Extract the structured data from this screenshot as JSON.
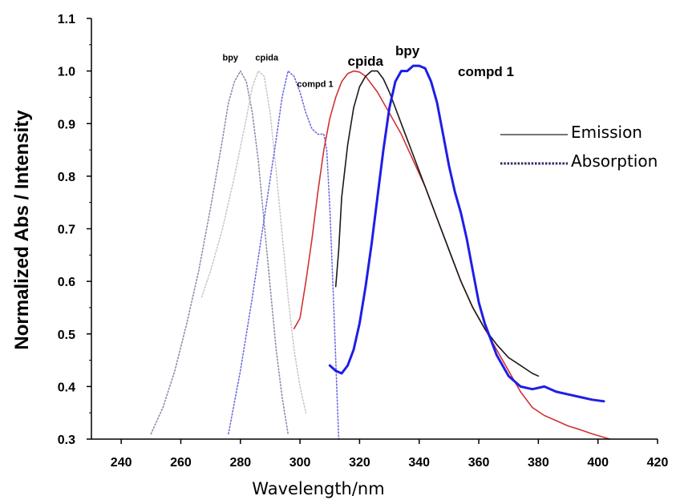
{
  "chart_data": {
    "type": "line",
    "xlabel": "Wavelength/nm",
    "ylabel": "Normalized Abs / Intensity",
    "xlim": [
      230,
      420
    ],
    "ylim": [
      0.3,
      1.1
    ],
    "xticks": [
      240,
      260,
      280,
      300,
      320,
      340,
      360,
      380,
      400,
      420
    ],
    "yticks": [
      0.3,
      0.4,
      0.5,
      0.6,
      0.7,
      0.8,
      0.9,
      1.0,
      1.1
    ],
    "xtick_labels": [
      "240",
      "260",
      "280",
      "300",
      "320",
      "340",
      "360",
      "380",
      "400",
      "420"
    ],
    "ytick_labels": [
      "0.3",
      "0.4",
      "0.5",
      "0.6",
      "0.7",
      "0.8",
      "0.9",
      "1.0",
      "1.1"
    ],
    "grid": false,
    "legend": {
      "placement": "right",
      "entries": [
        {
          "label": "Emission",
          "style": "solid"
        },
        {
          "label": "Absorption",
          "style": "dotted"
        }
      ]
    },
    "annotations": [
      {
        "text": "bpy",
        "x": 274,
        "y": 1.02,
        "size": "small"
      },
      {
        "text": "cpida",
        "x": 285,
        "y": 1.02,
        "size": "small"
      },
      {
        "text": "compd 1",
        "x": 299,
        "y": 0.97,
        "size": "small"
      },
      {
        "text": "cpida",
        "x": 316,
        "y": 1.01,
        "size": "large"
      },
      {
        "text": "bpy",
        "x": 332,
        "y": 1.03,
        "size": "large"
      },
      {
        "text": "compd 1",
        "x": 353,
        "y": 0.99,
        "size": "large"
      }
    ],
    "series": [
      {
        "style": "dotted",
        "color": "#8c8ca8",
        "x": [
          250,
          254,
          258,
          262,
          266,
          270,
          274,
          276,
          278,
          280,
          282,
          284,
          286,
          288,
          290,
          292,
          294,
          296
        ],
        "y": [
          0.31,
          0.36,
          0.43,
          0.52,
          0.62,
          0.74,
          0.87,
          0.94,
          0.98,
          1.0,
          0.98,
          0.92,
          0.83,
          0.71,
          0.59,
          0.47,
          0.38,
          0.31
        ]
      },
      {
        "style": "dotted",
        "color": "#c8c8c8",
        "x": [
          267,
          270,
          274,
          278,
          282,
          284,
          286,
          288,
          290,
          292,
          294,
          296,
          298,
          300,
          302
        ],
        "y": [
          0.57,
          0.62,
          0.7,
          0.8,
          0.91,
          0.97,
          1.0,
          0.99,
          0.92,
          0.81,
          0.69,
          0.57,
          0.47,
          0.4,
          0.35
        ]
      },
      {
        "style": "dotted",
        "color": "#6a6ae0",
        "x": [
          276,
          280,
          284,
          288,
          292,
          294,
          296,
          298,
          300,
          302,
          304,
          306,
          308,
          309,
          310,
          311,
          312,
          313
        ],
        "y": [
          0.31,
          0.43,
          0.57,
          0.72,
          0.87,
          0.95,
          1.0,
          0.99,
          0.96,
          0.92,
          0.89,
          0.88,
          0.88,
          0.85,
          0.74,
          0.6,
          0.45,
          0.3
        ]
      },
      {
        "style": "solid",
        "color": "#d23232",
        "x": [
          298,
          300,
          302,
          304,
          306,
          308,
          310,
          312,
          314,
          316,
          318,
          320,
          322,
          324,
          326,
          328,
          330,
          334,
          338,
          342,
          346,
          350,
          354,
          358,
          362,
          366,
          370,
          374,
          378,
          382,
          386,
          390,
          394,
          398,
          404
        ],
        "y": [
          0.51,
          0.53,
          0.6,
          0.68,
          0.77,
          0.85,
          0.91,
          0.95,
          0.98,
          0.995,
          1.0,
          0.998,
          0.99,
          0.975,
          0.96,
          0.94,
          0.92,
          0.88,
          0.83,
          0.78,
          0.72,
          0.66,
          0.6,
          0.55,
          0.51,
          0.47,
          0.43,
          0.39,
          0.36,
          0.345,
          0.335,
          0.325,
          0.318,
          0.31,
          0.3
        ]
      },
      {
        "style": "solid",
        "color": "#1a1a1a",
        "x": [
          312,
          313,
          314,
          316,
          318,
          320,
          322,
          324,
          326,
          328,
          330,
          334,
          338,
          342,
          346,
          350,
          354,
          358,
          362,
          366,
          370,
          374,
          378,
          380
        ],
        "y": [
          0.59,
          0.66,
          0.76,
          0.86,
          0.93,
          0.97,
          0.99,
          1.0,
          1.0,
          0.985,
          0.96,
          0.9,
          0.84,
          0.78,
          0.72,
          0.66,
          0.6,
          0.55,
          0.51,
          0.48,
          0.455,
          0.44,
          0.425,
          0.42
        ]
      },
      {
        "style": "solid",
        "color": "#1e1ee6",
        "x": [
          310,
          312,
          314,
          316,
          318,
          320,
          322,
          324,
          326,
          328,
          330,
          332,
          334,
          336,
          338,
          340,
          342,
          344,
          346,
          348,
          350,
          352,
          354,
          356,
          358,
          360,
          362,
          366,
          370,
          374,
          378,
          382,
          386,
          390,
          394,
          398,
          402
        ],
        "y": [
          0.44,
          0.43,
          0.425,
          0.44,
          0.47,
          0.52,
          0.59,
          0.67,
          0.76,
          0.85,
          0.93,
          0.98,
          1.0,
          1.0,
          1.01,
          1.01,
          1.005,
          0.98,
          0.94,
          0.88,
          0.82,
          0.77,
          0.73,
          0.68,
          0.62,
          0.56,
          0.52,
          0.46,
          0.42,
          0.4,
          0.395,
          0.4,
          0.39,
          0.385,
          0.38,
          0.375,
          0.372
        ]
      }
    ]
  }
}
